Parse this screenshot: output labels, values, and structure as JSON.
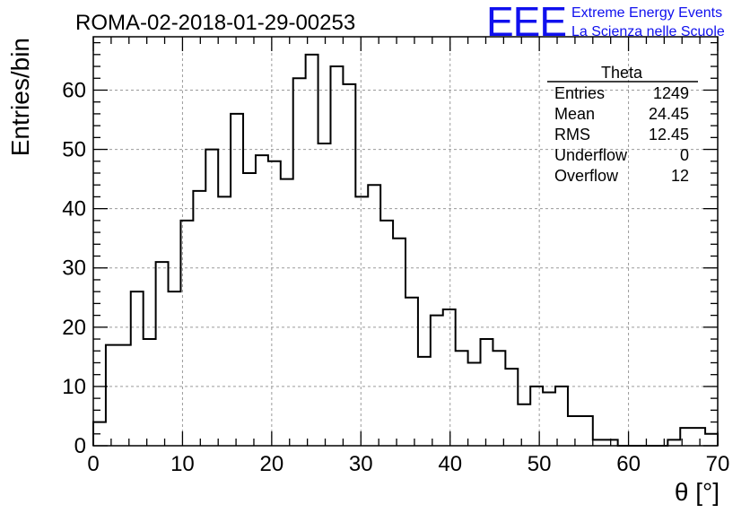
{
  "header": {
    "run_title": "ROMA-02-2018-01-29-00253",
    "logo_mark": "EEE",
    "logo_line1": "Extreme Energy Events",
    "logo_line2": "La Scienza nelle Scuole"
  },
  "stats": {
    "name": "Theta",
    "rows": [
      {
        "label": "Entries",
        "value": "1249"
      },
      {
        "label": "Mean",
        "value": "24.45"
      },
      {
        "label": "RMS",
        "value": "12.45"
      },
      {
        "label": "Underflow",
        "value": "0"
      },
      {
        "label": "Overflow",
        "value": "12"
      }
    ]
  },
  "colors": {
    "logo": "#1010ee",
    "line": "#000000",
    "grid": "#9a9a9a"
  },
  "chart_data": {
    "type": "histogram",
    "title": "ROMA-02-2018-01-29-00253",
    "xlabel": "θ [°]",
    "ylabel": "Entries/bin",
    "xlim": [
      0,
      70
    ],
    "ylim": [
      0,
      69
    ],
    "grid": true,
    "bin_width": 1.4,
    "bin_start": 0,
    "x_ticks": [
      0,
      10,
      20,
      30,
      40,
      50,
      60,
      70
    ],
    "y_ticks": [
      0,
      10,
      20,
      30,
      40,
      50,
      60
    ],
    "values": [
      4,
      17,
      17,
      26,
      18,
      31,
      26,
      38,
      43,
      50,
      42,
      56,
      46,
      49,
      48,
      45,
      62,
      66,
      51,
      64,
      61,
      42,
      44,
      38,
      35,
      25,
      15,
      22,
      23,
      16,
      14,
      18,
      16,
      13,
      7,
      10,
      9,
      10,
      5,
      5,
      1,
      1,
      0,
      0,
      0,
      0,
      1,
      3,
      3,
      2
    ]
  }
}
